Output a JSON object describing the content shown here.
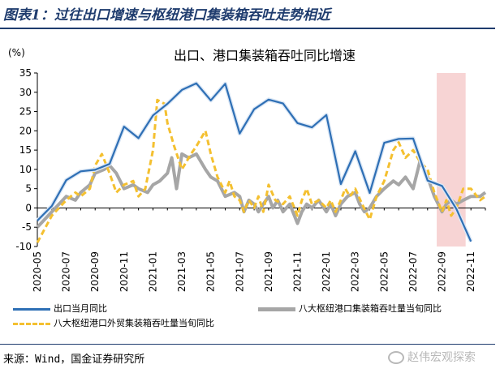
{
  "figure_title": "图表1：过往出口增速与枢纽港口集装箱吞吐走势相近",
  "source": "来源：Wind，国金证券研究所",
  "watermark": "赵伟宏观探索",
  "legend": {
    "export": "出口当月同比",
    "port": "八大枢纽港口集装箱吞吐量当旬同比",
    "trade": "八大枢纽港口外贸集装箱吞吐量当旬同比"
  },
  "colors": {
    "export": "#2e6fb5",
    "port": "#a6a6a6",
    "trade": "#f4c030",
    "highlight": "#f7d4d4",
    "title_blue": "#1f3c6e"
  },
  "chart_data": {
    "type": "line",
    "title": "出口、港口集装箱吞吐同比增速",
    "y_unit_label": "(%)",
    "ylim": [
      -10,
      35
    ],
    "y_ticks": [
      -10,
      -5,
      0,
      5,
      10,
      15,
      20,
      25,
      30,
      35
    ],
    "x_range": [
      "2020-05",
      "2022-12"
    ],
    "x_tick_labels": [
      "2020-05",
      "2020-07",
      "2020-09",
      "2020-11",
      "2021-01",
      "2021-03",
      "2021-05",
      "2021-07",
      "2021-09",
      "2021-11",
      "2022-01",
      "2022-03",
      "2022-05",
      "2022-07",
      "2022-09",
      "2022-11"
    ],
    "highlight_range": [
      "2022-08-20",
      "2022-10-20"
    ],
    "grid": false,
    "legend_position": "bottom",
    "series": [
      {
        "name": "出口当月同比",
        "key": "export",
        "points": [
          [
            "2020-05",
            -3.3
          ],
          [
            "2020-06",
            0.5
          ],
          [
            "2020-07",
            7.2
          ],
          [
            "2020-08",
            9.5
          ],
          [
            "2020-09",
            9.9
          ],
          [
            "2020-10",
            11.4
          ],
          [
            "2020-11",
            21.1
          ],
          [
            "2020-12",
            18.1
          ],
          [
            "2021-01",
            24.0
          ],
          [
            "2021-02",
            27.0
          ],
          [
            "2021-03",
            30.6
          ],
          [
            "2021-04",
            32.3
          ],
          [
            "2021-05",
            27.9
          ],
          [
            "2021-06",
            32.2
          ],
          [
            "2021-07",
            19.3
          ],
          [
            "2021-08",
            25.6
          ],
          [
            "2021-09",
            28.1
          ],
          [
            "2021-10",
            27.1
          ],
          [
            "2021-11",
            22.0
          ],
          [
            "2021-12",
            20.9
          ],
          [
            "2022-01",
            24.1
          ],
          [
            "2022-02",
            6.2
          ],
          [
            "2022-03",
            14.7
          ],
          [
            "2022-04",
            3.9
          ],
          [
            "2022-05",
            16.9
          ],
          [
            "2022-06",
            17.9
          ],
          [
            "2022-07",
            18.0
          ],
          [
            "2022-08",
            7.1
          ],
          [
            "2022-09",
            5.7
          ],
          [
            "2022-10",
            -0.3
          ],
          [
            "2022-11",
            -8.7
          ]
        ]
      },
      {
        "name": "八大枢纽港口集装箱吞吐量当旬同比",
        "key": "port",
        "points": [
          [
            "2020-05",
            -5.0
          ],
          [
            "2020-06",
            -1.0
          ],
          [
            "2020-07",
            3.0
          ],
          [
            "2020-07-20",
            2.0
          ],
          [
            "2020-08",
            4.0
          ],
          [
            "2020-08-20",
            6.0
          ],
          [
            "2020-09",
            9.0
          ],
          [
            "2020-09-20",
            10.0
          ],
          [
            "2020-10",
            11.0
          ],
          [
            "2020-10-15",
            9.0
          ],
          [
            "2020-11",
            5.0
          ],
          [
            "2020-11-20",
            6.0
          ],
          [
            "2020-12",
            5.0
          ],
          [
            "2020-12-20",
            4.0
          ],
          [
            "2021-01",
            6.0
          ],
          [
            "2021-01-15",
            7.0
          ],
          [
            "2021-02",
            9.0
          ],
          [
            "2021-02-10",
            13.0
          ],
          [
            "2021-02-20",
            5.0
          ],
          [
            "2021-03",
            14.0
          ],
          [
            "2021-03-15",
            13.0
          ],
          [
            "2021-04",
            14.0
          ],
          [
            "2021-04-20",
            10.0
          ],
          [
            "2021-05",
            8.0
          ],
          [
            "2021-05-15",
            7.0
          ],
          [
            "2021-06",
            3.0
          ],
          [
            "2021-06-20",
            4.0
          ],
          [
            "2021-07",
            3.0
          ],
          [
            "2021-07-10",
            -1.0
          ],
          [
            "2021-07-20",
            2.0
          ],
          [
            "2021-08",
            1.0
          ],
          [
            "2021-08-10",
            -1.0
          ],
          [
            "2021-08-20",
            1.0
          ],
          [
            "2021-09",
            3.0
          ],
          [
            "2021-09-10",
            0.0
          ],
          [
            "2021-09-20",
            2.0
          ],
          [
            "2021-10",
            -1.0
          ],
          [
            "2021-10-15",
            1.0
          ],
          [
            "2021-11",
            -4.0
          ],
          [
            "2021-11-10",
            -1.0
          ],
          [
            "2021-11-20",
            1.0
          ],
          [
            "2021-12",
            0.0
          ],
          [
            "2021-12-15",
            2.0
          ],
          [
            "2022-01",
            -1.0
          ],
          [
            "2022-01-10",
            1.0
          ],
          [
            "2022-01-20",
            -2.0
          ],
          [
            "2022-02",
            1.0
          ],
          [
            "2022-02-15",
            3.0
          ],
          [
            "2022-03",
            4.0
          ],
          [
            "2022-03-10",
            1.0
          ],
          [
            "2022-03-20",
            -1.0
          ],
          [
            "2022-04",
            0.0
          ],
          [
            "2022-04-15",
            3.0
          ],
          [
            "2022-05",
            5.0
          ],
          [
            "2022-05-20",
            7.0
          ],
          [
            "2022-06",
            6.0
          ],
          [
            "2022-06-15",
            8.0
          ],
          [
            "2022-07",
            5.0
          ],
          [
            "2022-07-15",
            12.0
          ],
          [
            "2022-08",
            8.0
          ],
          [
            "2022-08-15",
            3.0
          ],
          [
            "2022-09",
            -1.0
          ],
          [
            "2022-09-10",
            1.0
          ],
          [
            "2022-09-20",
            2.0
          ],
          [
            "2022-10",
            1.0
          ],
          [
            "2022-10-15",
            2.0
          ],
          [
            "2022-11",
            3.0
          ],
          [
            "2022-11-20",
            3.0
          ],
          [
            "2022-12",
            4.0
          ]
        ]
      },
      {
        "name": "八大枢纽港口外贸集装箱吞吐量当旬同比",
        "key": "trade",
        "points": [
          [
            "2020-05",
            -9.0
          ],
          [
            "2020-06",
            -2.0
          ],
          [
            "2020-07",
            2.0
          ],
          [
            "2020-07-20",
            4.0
          ],
          [
            "2020-08",
            3.0
          ],
          [
            "2020-08-20",
            5.0
          ],
          [
            "2020-09",
            11.0
          ],
          [
            "2020-09-15",
            14.0
          ],
          [
            "2020-10",
            9.0
          ],
          [
            "2020-10-15",
            4.0
          ],
          [
            "2020-11",
            6.0
          ],
          [
            "2020-11-20",
            7.0
          ],
          [
            "2020-12",
            3.0
          ],
          [
            "2020-12-15",
            5.0
          ],
          [
            "2021-01",
            15.0
          ],
          [
            "2021-01-10",
            28.0
          ],
          [
            "2021-01-25",
            27.0
          ],
          [
            "2021-02",
            22.0
          ],
          [
            "2021-02-15",
            16.0
          ],
          [
            "2021-03",
            10.0
          ],
          [
            "2021-03-20",
            14.0
          ],
          [
            "2021-04",
            16.0
          ],
          [
            "2021-04-20",
            20.0
          ],
          [
            "2021-05",
            14.0
          ],
          [
            "2021-05-15",
            8.0
          ],
          [
            "2021-06",
            4.0
          ],
          [
            "2021-06-10",
            7.0
          ],
          [
            "2021-06-20",
            3.0
          ],
          [
            "2021-07",
            2.0
          ],
          [
            "2021-07-10",
            -1.0
          ],
          [
            "2021-07-20",
            2.0
          ],
          [
            "2021-08",
            0.0
          ],
          [
            "2021-08-10",
            3.0
          ],
          [
            "2021-08-20",
            -1.0
          ],
          [
            "2021-09",
            6.0
          ],
          [
            "2021-09-15",
            2.0
          ],
          [
            "2021-10",
            1.0
          ],
          [
            "2021-10-15",
            3.0
          ],
          [
            "2021-11",
            -2.0
          ],
          [
            "2021-11-10",
            2.0
          ],
          [
            "2021-11-20",
            5.0
          ],
          [
            "2021-12",
            1.0
          ],
          [
            "2021-12-15",
            2.0
          ],
          [
            "2022-01",
            0.0
          ],
          [
            "2022-01-10",
            2.0
          ],
          [
            "2022-01-20",
            -1.0
          ],
          [
            "2022-02",
            2.0
          ],
          [
            "2022-02-10",
            5.0
          ],
          [
            "2022-02-20",
            3.0
          ],
          [
            "2022-03",
            5.0
          ],
          [
            "2022-03-15",
            1.0
          ],
          [
            "2022-04",
            -3.0
          ],
          [
            "2022-04-15",
            3.0
          ],
          [
            "2022-05",
            7.0
          ],
          [
            "2022-05-20",
            15.0
          ],
          [
            "2022-06",
            17.0
          ],
          [
            "2022-06-15",
            13.0
          ],
          [
            "2022-07",
            15.0
          ],
          [
            "2022-07-15",
            12.0
          ],
          [
            "2022-08",
            10.0
          ],
          [
            "2022-08-15",
            4.0
          ],
          [
            "2022-09",
            -1.0
          ],
          [
            "2022-09-10",
            2.0
          ],
          [
            "2022-09-20",
            -2.0
          ],
          [
            "2022-10",
            0.0
          ],
          [
            "2022-10-15",
            5.0
          ],
          [
            "2022-11",
            5.0
          ],
          [
            "2022-11-20",
            2.0
          ],
          [
            "2022-12",
            3.0
          ]
        ]
      }
    ]
  }
}
